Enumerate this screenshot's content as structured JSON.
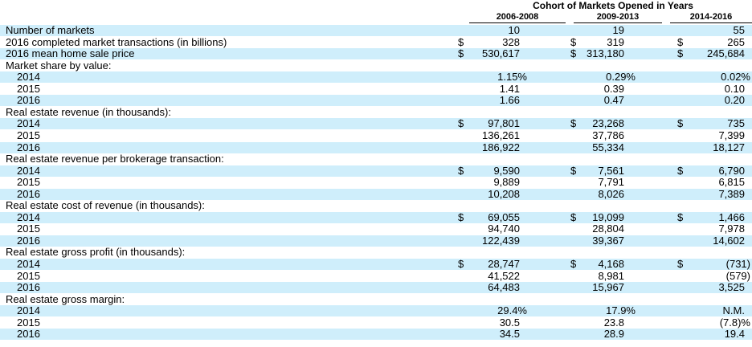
{
  "table": {
    "title": "Cohort of Markets Opened in Years",
    "columns": [
      "2006-2008",
      "2009-2013",
      "2014-2016"
    ],
    "rows": [
      {
        "label": "Number of markets",
        "indent": false,
        "shade": true,
        "cur": [
          "",
          "",
          ""
        ],
        "vals": [
          "10",
          "19",
          "55"
        ]
      },
      {
        "label": "2016 completed market transactions (in billions)",
        "indent": false,
        "shade": false,
        "cur": [
          "$",
          "$",
          "$"
        ],
        "vals": [
          "328",
          "319",
          "265"
        ]
      },
      {
        "label": "2016 mean home sale price",
        "indent": false,
        "shade": true,
        "cur": [
          "$",
          "$",
          "$"
        ],
        "vals": [
          "530,617",
          "313,180",
          "245,684"
        ]
      },
      {
        "label": "Market share by value:",
        "indent": false,
        "shade": false,
        "cur": [
          "",
          "",
          ""
        ],
        "vals": [
          "",
          "",
          ""
        ]
      },
      {
        "label": "2014",
        "indent": true,
        "shade": true,
        "cur": [
          "",
          "",
          ""
        ],
        "vals": [
          "1.15%",
          "0.29%",
          "0.02%"
        ]
      },
      {
        "label": "2015",
        "indent": true,
        "shade": false,
        "cur": [
          "",
          "",
          ""
        ],
        "vals": [
          "1.41",
          "0.39",
          "0.10"
        ]
      },
      {
        "label": "2016",
        "indent": true,
        "shade": true,
        "cur": [
          "",
          "",
          ""
        ],
        "vals": [
          "1.66",
          "0.47",
          "0.20"
        ]
      },
      {
        "label": "Real estate revenue (in thousands):",
        "indent": false,
        "shade": false,
        "cur": [
          "",
          "",
          ""
        ],
        "vals": [
          "",
          "",
          ""
        ]
      },
      {
        "label": "2014",
        "indent": true,
        "shade": true,
        "cur": [
          "$",
          "$",
          "$"
        ],
        "vals": [
          "97,801",
          "23,268",
          "735"
        ]
      },
      {
        "label": "2015",
        "indent": true,
        "shade": false,
        "cur": [
          "",
          "",
          ""
        ],
        "vals": [
          "136,261",
          "37,786",
          "7,399"
        ]
      },
      {
        "label": "2016",
        "indent": true,
        "shade": true,
        "cur": [
          "",
          "",
          ""
        ],
        "vals": [
          "186,922",
          "55,334",
          "18,127"
        ]
      },
      {
        "label": "Real estate revenue per brokerage transaction:",
        "indent": false,
        "shade": false,
        "cur": [
          "",
          "",
          ""
        ],
        "vals": [
          "",
          "",
          ""
        ]
      },
      {
        "label": "2014",
        "indent": true,
        "shade": true,
        "cur": [
          "$",
          "$",
          "$"
        ],
        "vals": [
          "9,590",
          "7,561",
          "6,790"
        ]
      },
      {
        "label": "2015",
        "indent": true,
        "shade": false,
        "cur": [
          "",
          "",
          ""
        ],
        "vals": [
          "9,889",
          "7,791",
          "6,815"
        ]
      },
      {
        "label": "2016",
        "indent": true,
        "shade": true,
        "cur": [
          "",
          "",
          ""
        ],
        "vals": [
          "10,208",
          "8,026",
          "7,389"
        ]
      },
      {
        "label": "Real estate cost of revenue (in thousands):",
        "indent": false,
        "shade": false,
        "cur": [
          "",
          "",
          ""
        ],
        "vals": [
          "",
          "",
          ""
        ]
      },
      {
        "label": "2014",
        "indent": true,
        "shade": true,
        "cur": [
          "$",
          "$",
          "$"
        ],
        "vals": [
          "69,055",
          "19,099",
          "1,466"
        ]
      },
      {
        "label": "2015",
        "indent": true,
        "shade": false,
        "cur": [
          "",
          "",
          ""
        ],
        "vals": [
          "94,740",
          "28,804",
          "7,978"
        ]
      },
      {
        "label": "2016",
        "indent": true,
        "shade": true,
        "cur": [
          "",
          "",
          ""
        ],
        "vals": [
          "122,439",
          "39,367",
          "14,602"
        ]
      },
      {
        "label": "Real estate gross profit (in thousands):",
        "indent": false,
        "shade": false,
        "cur": [
          "",
          "",
          ""
        ],
        "vals": [
          "",
          "",
          ""
        ]
      },
      {
        "label": "2014",
        "indent": true,
        "shade": true,
        "cur": [
          "$",
          "$",
          "$"
        ],
        "vals": [
          "28,747",
          "4,168",
          "(731)"
        ]
      },
      {
        "label": "2015",
        "indent": true,
        "shade": false,
        "cur": [
          "",
          "",
          ""
        ],
        "vals": [
          "41,522",
          "8,981",
          "(579)"
        ]
      },
      {
        "label": "2016",
        "indent": true,
        "shade": true,
        "cur": [
          "",
          "",
          ""
        ],
        "vals": [
          "64,483",
          "15,967",
          "3,525"
        ]
      },
      {
        "label": "Real estate gross margin:",
        "indent": false,
        "shade": false,
        "cur": [
          "",
          "",
          ""
        ],
        "vals": [
          "",
          "",
          ""
        ]
      },
      {
        "label": "2014",
        "indent": true,
        "shade": true,
        "cur": [
          "",
          "",
          ""
        ],
        "vals": [
          "29.4%",
          "17.9%",
          "N.M."
        ]
      },
      {
        "label": "2015",
        "indent": true,
        "shade": false,
        "cur": [
          "",
          "",
          ""
        ],
        "vals": [
          "30.5",
          "23.8",
          "(7.8)%"
        ]
      },
      {
        "label": "2016",
        "indent": true,
        "shade": true,
        "cur": [
          "",
          "",
          ""
        ],
        "vals": [
          "34.5",
          "28.9",
          "19.4"
        ]
      }
    ]
  }
}
